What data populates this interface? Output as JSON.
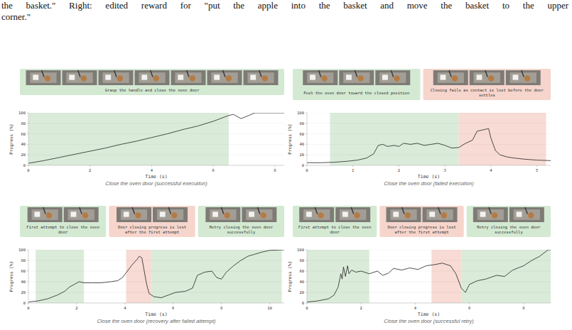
{
  "header": {
    "lines": [
      "the basket.\" Right: edited reward for \"put the apple into the basket and move the basket to the upper",
      "corner.\""
    ]
  },
  "chart_data": [
    {
      "type": "line",
      "title": "Close the oven door (successful execution)",
      "x_label": "Time (s)",
      "y_label": "Progress (%)",
      "xlim": [
        0,
        8.3
      ],
      "ylim": [
        0,
        100
      ],
      "xticks": [
        0,
        2,
        4,
        6,
        8
      ],
      "yticks": [
        0,
        20,
        40,
        60,
        80,
        100
      ],
      "grid": true,
      "color": "#222222",
      "x": [
        0,
        0.5,
        1,
        1.5,
        2,
        2.5,
        3,
        3.5,
        4,
        4.5,
        5,
        5.5,
        6,
        6.5,
        6.65,
        6.9,
        7.15,
        7.35,
        8.3
      ],
      "values": [
        4,
        9,
        15,
        21,
        27,
        33,
        40,
        46,
        53,
        60,
        68,
        75,
        84,
        95,
        97,
        89,
        95,
        100,
        100
      ],
      "stages": [
        {
          "label": "Grasp the handle and close the oven door",
          "color": "#d4e9d2",
          "start": 0,
          "end": 6.5
        }
      ]
    },
    {
      "type": "line",
      "title": "Close the oven door (failed execution)",
      "x_label": "Time (s)",
      "y_label": "Progress (%)",
      "xlim": [
        0,
        5.3
      ],
      "ylim": [
        0,
        100
      ],
      "xticks": [
        0,
        1,
        2,
        3,
        4,
        5
      ],
      "yticks": [
        0,
        20,
        40,
        60,
        80,
        100
      ],
      "grid": true,
      "color": "#222222",
      "x": [
        0,
        0.3,
        0.6,
        0.9,
        1.1,
        1.3,
        1.45,
        1.55,
        1.65,
        1.75,
        1.9,
        2.0,
        2.1,
        2.25,
        2.4,
        2.55,
        2.7,
        2.85,
        3.0,
        3.15,
        3.3,
        3.45,
        3.6,
        3.7,
        3.85,
        3.95,
        4.0,
        4.1,
        4.2,
        4.35,
        4.5,
        4.7,
        5.0,
        5.3
      ],
      "values": [
        5,
        5,
        6,
        8,
        10,
        14,
        22,
        38,
        40,
        36,
        38,
        36,
        42,
        40,
        42,
        38,
        40,
        42,
        38,
        33,
        34,
        42,
        48,
        65,
        68,
        70,
        52,
        28,
        20,
        16,
        14,
        12,
        10,
        9
      ],
      "stages": [
        {
          "label": "Push the oven door toward the closed position",
          "color": "#d4e9d2",
          "start": 0.5,
          "end": 3.3
        },
        {
          "label": "Closing fails as contact is lost before the door settles",
          "color": "#f6d5cc",
          "start": 3.3,
          "end": 5.2
        }
      ]
    },
    {
      "type": "line",
      "title": "Close the oven door (recovery after failed attempt)",
      "x_label": "Time (s)",
      "y_label": "Progress (%)",
      "xlim": [
        0,
        10.6
      ],
      "ylim": [
        0,
        100
      ],
      "xticks": [
        0,
        2,
        4,
        6,
        8,
        10
      ],
      "yticks": [
        0,
        20,
        40,
        60,
        80,
        100
      ],
      "grid": true,
      "color": "#222222",
      "x": [
        0,
        0.4,
        0.8,
        1.2,
        1.5,
        1.7,
        1.9,
        2.1,
        2.3,
        2.6,
        3.0,
        3.4,
        3.7,
        3.9,
        4.1,
        4.3,
        4.5,
        4.6,
        4.7,
        4.8,
        4.9,
        5.0,
        5.2,
        5.5,
        5.8,
        6.1,
        6.5,
        6.8,
        7.0,
        7.3,
        7.6,
        7.8,
        8.0,
        8.2,
        8.5,
        8.8,
        9.1,
        9.4,
        9.7,
        10.0,
        10.6
      ],
      "values": [
        2,
        4,
        8,
        15,
        22,
        30,
        35,
        40,
        38,
        38,
        38,
        40,
        42,
        48,
        60,
        72,
        82,
        88,
        85,
        60,
        35,
        18,
        12,
        10,
        15,
        20,
        22,
        28,
        52,
        58,
        60,
        48,
        45,
        58,
        70,
        80,
        88,
        92,
        96,
        99,
        100
      ],
      "stages": [
        {
          "label": "First attempt to close the oven door",
          "color": "#d4e9d2",
          "start": 0.3,
          "end": 2.3
        },
        {
          "label": "Door closing progress is lost after the first attempt",
          "color": "#f6d5cc",
          "start": 4.05,
          "end": 5.1
        },
        {
          "label": "Retry closing the oven door successfully",
          "color": "#d4e9d2",
          "start": 5.1,
          "end": 10.5
        }
      ]
    },
    {
      "type": "line",
      "title": "Close the oven door (successful retry)",
      "x_label": "Time (s)",
      "y_label": "Progress (%)",
      "xlim": [
        0,
        9
      ],
      "ylim": [
        0,
        100
      ],
      "xticks": [
        0,
        2,
        4,
        6,
        8
      ],
      "yticks": [
        0,
        20,
        40,
        60,
        80,
        100
      ],
      "grid": true,
      "color": "#222222",
      "x": [
        0,
        0.4,
        0.8,
        1.0,
        1.15,
        1.25,
        1.3,
        1.35,
        1.42,
        1.5,
        1.55,
        1.65,
        1.8,
        2.0,
        2.3,
        2.6,
        2.8,
        3.0,
        3.2,
        3.5,
        3.8,
        4.1,
        4.4,
        4.7,
        5.0,
        5.3,
        5.5,
        5.7,
        5.85,
        6.0,
        6.3,
        6.6,
        7.0,
        7.3,
        7.6,
        8.0,
        8.3,
        8.6,
        8.9,
        9.0
      ],
      "values": [
        2,
        4,
        8,
        15,
        30,
        55,
        45,
        68,
        50,
        70,
        55,
        62,
        58,
        60,
        55,
        60,
        52,
        56,
        65,
        62,
        66,
        63,
        70,
        72,
        75,
        70,
        55,
        28,
        20,
        35,
        42,
        45,
        52,
        50,
        62,
        70,
        80,
        88,
        100,
        100
      ],
      "stages": [
        {
          "label": "First attempt to close the oven door",
          "color": "#d4e9d2",
          "start": 0,
          "end": 2.3
        },
        {
          "label": "Door closing progress is lost after the first attempt",
          "color": "#f6d5cc",
          "start": 4.6,
          "end": 5.7
        },
        {
          "label": "Retry closing the oven door successfully",
          "color": "#d4e9d2",
          "start": 5.7,
          "end": 9
        }
      ]
    }
  ]
}
